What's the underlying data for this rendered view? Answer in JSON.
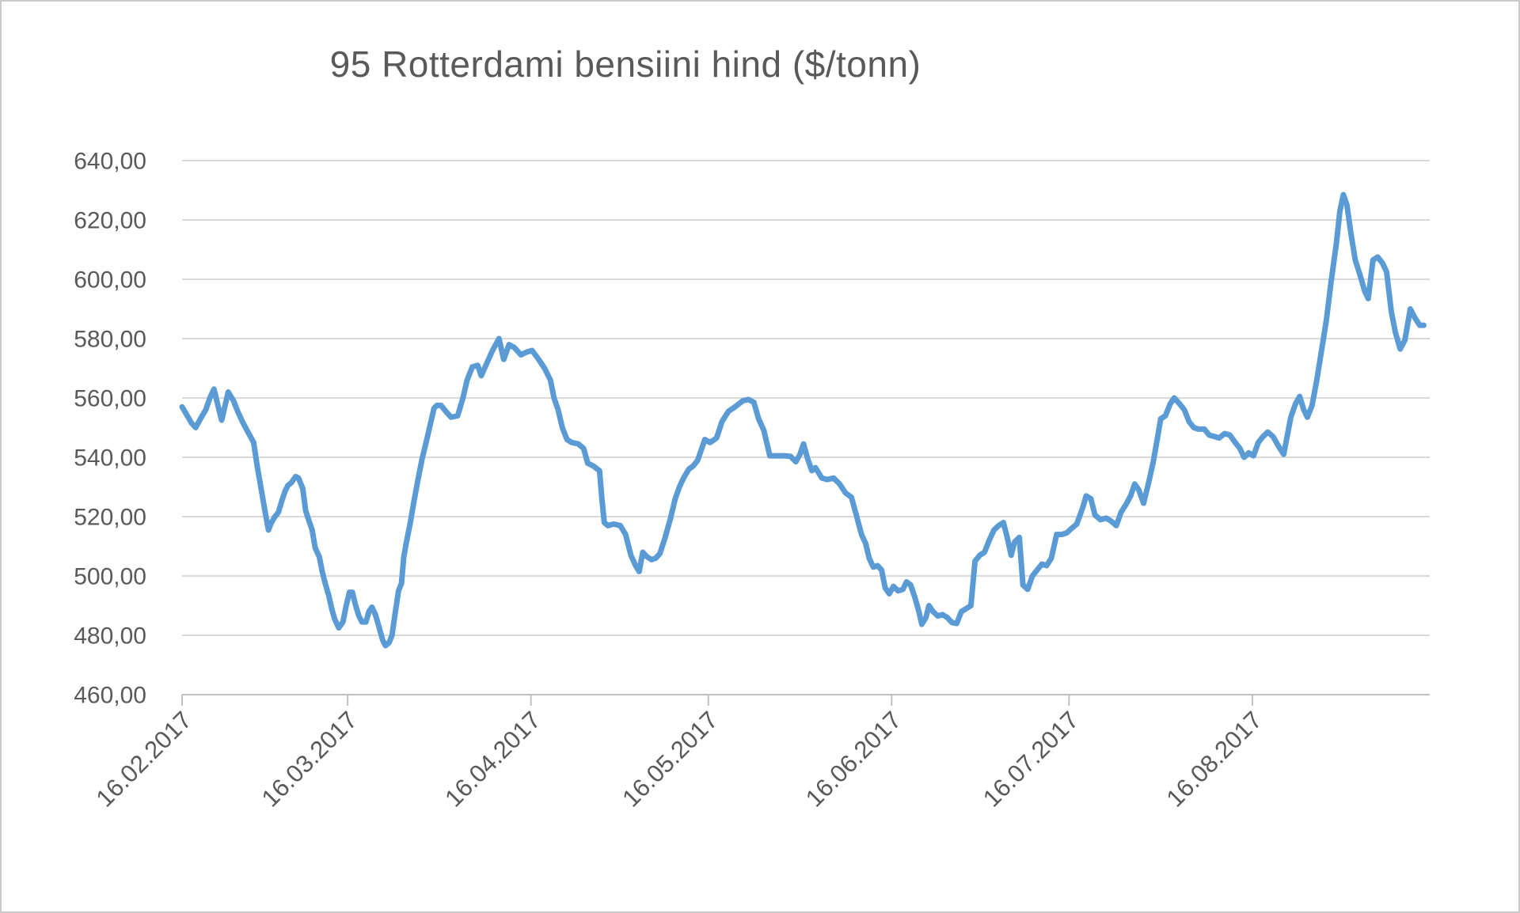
{
  "window": {
    "border_color": "#c9c9c9",
    "background": "#ffffff"
  },
  "chart": {
    "title": "95 Rotterdami bensiini hind ($/tonn)",
    "title_color": "#595959",
    "label_color": "#595959",
    "line_color": "#5B9BD5",
    "gridline_color": "#d9d9d9",
    "axis_line_color": "#bfbfbf"
  },
  "chart_data": {
    "type": "line",
    "title": "95 Rotterdami bensiini hind ($/tonn)",
    "xlabel": "",
    "ylabel": "",
    "x_unit": "days since 16.02.2017",
    "x_range_days": [
      0,
      211
    ],
    "x_tick_days": [
      0,
      28,
      59,
      89,
      120,
      150,
      181
    ],
    "x_tick_labels": [
      "16.02.2017",
      "16.03.2017",
      "16.04.2017",
      "16.05.2017",
      "16.06.2017",
      "16.07.2017",
      "16.08.2017"
    ],
    "ylim": [
      460,
      640
    ],
    "y_tick_step": 20,
    "y_tick_labels": [
      "640,00",
      "620,00",
      "600,00",
      "580,00",
      "560,00",
      "540,00",
      "520,00",
      "500,00",
      "480,00",
      "460,00"
    ],
    "grid": "horizontal",
    "legend": "none",
    "series": [
      {
        "name": "95 Rotterdami bensiini hind ($/tonn)",
        "color": "#5B9BD5",
        "points": [
          [
            0,
            557
          ],
          [
            1.6,
            551.5
          ],
          [
            2.3,
            550
          ],
          [
            3.1,
            553
          ],
          [
            4,
            556
          ],
          [
            4.7,
            560
          ],
          [
            5.4,
            563
          ],
          [
            6,
            558
          ],
          [
            6.7,
            552.5
          ],
          [
            7.8,
            562
          ],
          [
            8.7,
            559
          ],
          [
            9.4,
            555.5
          ],
          [
            10.2,
            552
          ],
          [
            11,
            549
          ],
          [
            12.1,
            545
          ],
          [
            12.7,
            537
          ],
          [
            13.4,
            529
          ],
          [
            14.1,
            521
          ],
          [
            14.6,
            515.5
          ],
          [
            15.1,
            518
          ],
          [
            15.7,
            520
          ],
          [
            16.3,
            521.5
          ],
          [
            16.9,
            525.5
          ],
          [
            17.4,
            528.5
          ],
          [
            17.9,
            530.5
          ],
          [
            18.5,
            531.5
          ],
          [
            19.2,
            533.5
          ],
          [
            19.7,
            533
          ],
          [
            20.4,
            529.5
          ],
          [
            20.9,
            522
          ],
          [
            21.4,
            519
          ],
          [
            22,
            515.5
          ],
          [
            22.5,
            509.5
          ],
          [
            23.2,
            506.5
          ],
          [
            23.7,
            501.5
          ],
          [
            24.2,
            497.5
          ],
          [
            24.8,
            493.5
          ],
          [
            25.3,
            489
          ],
          [
            25.8,
            485.5
          ],
          [
            26.5,
            482.5
          ],
          [
            27.2,
            484.5
          ],
          [
            27.7,
            489.5
          ],
          [
            28.3,
            494.5
          ],
          [
            28.8,
            494.5
          ],
          [
            29.3,
            490.5
          ],
          [
            29.9,
            486.5
          ],
          [
            30.4,
            484.5
          ],
          [
            31.1,
            484.5
          ],
          [
            31.6,
            488
          ],
          [
            32.1,
            489.5
          ],
          [
            32.7,
            487
          ],
          [
            33.2,
            483.5
          ],
          [
            33.9,
            478.5
          ],
          [
            34.4,
            476.5
          ],
          [
            35,
            477.5
          ],
          [
            35.5,
            480
          ],
          [
            36,
            487
          ],
          [
            36.6,
            495
          ],
          [
            37.1,
            497.5
          ],
          [
            37.5,
            506.5
          ],
          [
            37.9,
            511
          ],
          [
            38.6,
            518
          ],
          [
            39.2,
            525
          ],
          [
            39.9,
            532.5
          ],
          [
            40.6,
            539.5
          ],
          [
            41.5,
            547
          ],
          [
            42.6,
            556.5
          ],
          [
            43.1,
            557.5
          ],
          [
            43.8,
            557.5
          ],
          [
            44.6,
            555.5
          ],
          [
            45.5,
            553.5
          ],
          [
            46.6,
            554
          ],
          [
            47.5,
            560
          ],
          [
            48.2,
            566
          ],
          [
            49.1,
            570.5
          ],
          [
            50,
            571
          ],
          [
            50.6,
            567.5
          ],
          [
            51.6,
            572
          ],
          [
            52.5,
            576
          ],
          [
            53.6,
            580
          ],
          [
            54.4,
            573
          ],
          [
            55.3,
            578
          ],
          [
            56.2,
            577
          ],
          [
            57.3,
            574.5
          ],
          [
            58.3,
            575.5
          ],
          [
            59.2,
            576
          ],
          [
            60.3,
            573
          ],
          [
            61.3,
            570
          ],
          [
            62.3,
            566
          ],
          [
            62.9,
            560
          ],
          [
            63.6,
            556
          ],
          [
            64.3,
            550
          ],
          [
            65.1,
            546
          ],
          [
            65.9,
            545
          ],
          [
            67,
            544.5
          ],
          [
            67.9,
            543
          ],
          [
            68.6,
            538
          ],
          [
            69.6,
            537
          ],
          [
            70.6,
            535.5
          ],
          [
            71,
            526
          ],
          [
            71.4,
            518
          ],
          [
            72,
            517
          ],
          [
            73,
            517.5
          ],
          [
            74.1,
            517
          ],
          [
            75,
            514
          ],
          [
            75.9,
            507
          ],
          [
            76.7,
            503.5
          ],
          [
            77.3,
            501.5
          ],
          [
            77.9,
            508
          ],
          [
            78.6,
            506.5
          ],
          [
            79.4,
            505.5
          ],
          [
            80.1,
            506
          ],
          [
            80.8,
            507.5
          ],
          [
            81.7,
            513
          ],
          [
            82.6,
            519.5
          ],
          [
            83.4,
            526
          ],
          [
            84.1,
            530
          ],
          [
            84.8,
            533
          ],
          [
            85.7,
            536
          ],
          [
            86.4,
            537
          ],
          [
            87.2,
            539
          ],
          [
            88.4,
            546
          ],
          [
            89.3,
            545
          ],
          [
            90.4,
            546.5
          ],
          [
            91.3,
            552
          ],
          [
            92.4,
            555.5
          ],
          [
            93.5,
            557
          ],
          [
            94.8,
            559
          ],
          [
            95.8,
            559.5
          ],
          [
            96.7,
            558.5
          ],
          [
            97.5,
            553
          ],
          [
            98.4,
            549
          ],
          [
            99.4,
            540.5
          ],
          [
            100.4,
            540.5
          ],
          [
            101.8,
            540.5
          ],
          [
            102.9,
            540.3
          ],
          [
            103.8,
            538.5
          ],
          [
            104.5,
            541
          ],
          [
            105.1,
            544.5
          ],
          [
            105.8,
            539.5
          ],
          [
            106.5,
            535.5
          ],
          [
            107.1,
            536.5
          ],
          [
            108.2,
            533
          ],
          [
            109.1,
            532.5
          ],
          [
            110.2,
            533
          ],
          [
            111.2,
            531
          ],
          [
            112.2,
            528
          ],
          [
            113.2,
            526.5
          ],
          [
            114.1,
            520
          ],
          [
            114.9,
            514
          ],
          [
            115.6,
            511
          ],
          [
            116.2,
            506
          ],
          [
            116.9,
            503
          ],
          [
            117.6,
            503.5
          ],
          [
            118.3,
            502
          ],
          [
            118.9,
            496
          ],
          [
            119.6,
            494
          ],
          [
            120.3,
            496.5
          ],
          [
            121.1,
            495
          ],
          [
            121.9,
            495.5
          ],
          [
            122.5,
            498
          ],
          [
            123.2,
            497
          ],
          [
            123.9,
            493
          ],
          [
            124.6,
            488
          ],
          [
            125.1,
            483.7
          ],
          [
            125.8,
            486
          ],
          [
            126.3,
            490
          ],
          [
            127,
            488
          ],
          [
            127.8,
            486.5
          ],
          [
            128.6,
            487
          ],
          [
            129.4,
            486
          ],
          [
            130.2,
            484.3
          ],
          [
            131,
            484
          ],
          [
            131.8,
            488
          ],
          [
            132.6,
            489
          ],
          [
            133.4,
            490
          ],
          [
            134.1,
            505
          ],
          [
            134.9,
            507
          ],
          [
            135.7,
            508
          ],
          [
            136.5,
            512
          ],
          [
            137.3,
            515.5
          ],
          [
            138.1,
            517
          ],
          [
            138.9,
            518
          ],
          [
            139.6,
            512.5
          ],
          [
            140.2,
            507
          ],
          [
            140.8,
            511.5
          ],
          [
            141.6,
            513
          ],
          [
            142.2,
            497
          ],
          [
            143,
            495.5
          ],
          [
            143.8,
            500
          ],
          [
            144.6,
            502
          ],
          [
            145.4,
            504
          ],
          [
            146.2,
            503.5
          ],
          [
            147,
            506
          ],
          [
            147.9,
            514
          ],
          [
            148.8,
            514
          ],
          [
            149.6,
            514.5
          ],
          [
            150.4,
            516
          ],
          [
            151.3,
            517.5
          ],
          [
            152.3,
            523
          ],
          [
            152.9,
            527
          ],
          [
            153.7,
            526
          ],
          [
            154.4,
            520.5
          ],
          [
            155.3,
            519
          ],
          [
            156.3,
            519.5
          ],
          [
            157.1,
            518.5
          ],
          [
            158,
            517
          ],
          [
            158.8,
            521.5
          ],
          [
            159.6,
            524
          ],
          [
            160.4,
            527
          ],
          [
            161.1,
            531
          ],
          [
            161.8,
            529
          ],
          [
            162.6,
            524.5
          ],
          [
            163.4,
            531
          ],
          [
            164.2,
            538
          ],
          [
            164.9,
            546
          ],
          [
            165.5,
            553
          ],
          [
            166.3,
            554
          ],
          [
            167.1,
            558
          ],
          [
            167.8,
            560
          ],
          [
            168.7,
            558
          ],
          [
            169.5,
            556
          ],
          [
            170.3,
            552
          ],
          [
            171.1,
            550
          ],
          [
            171.9,
            549.5
          ],
          [
            172.9,
            549.5
          ],
          [
            173.7,
            547.5
          ],
          [
            174.6,
            547
          ],
          [
            175.4,
            546.5
          ],
          [
            176.3,
            548
          ],
          [
            177.2,
            547.5
          ],
          [
            178.1,
            545
          ],
          [
            178.9,
            543
          ],
          [
            179.6,
            540
          ],
          [
            180.4,
            541.5
          ],
          [
            181.2,
            540.5
          ],
          [
            182,
            545
          ],
          [
            182.8,
            547
          ],
          [
            183.6,
            548.5
          ],
          [
            184.5,
            547
          ],
          [
            185.5,
            543.5
          ],
          [
            186.3,
            541
          ],
          [
            187.5,
            553.5
          ],
          [
            188.3,
            558
          ],
          [
            189,
            560.5
          ],
          [
            189.7,
            556
          ],
          [
            190.3,
            553.5
          ],
          [
            191.1,
            557.5
          ],
          [
            191.9,
            566
          ],
          [
            192.7,
            576
          ],
          [
            193.5,
            586
          ],
          [
            194.3,
            599
          ],
          [
            195.2,
            612
          ],
          [
            195.8,
            623
          ],
          [
            196.4,
            628.5
          ],
          [
            197,
            625
          ],
          [
            197.7,
            615
          ],
          [
            198.4,
            606.5
          ],
          [
            199.2,
            601.5
          ],
          [
            200,
            596
          ],
          [
            200.6,
            593.5
          ],
          [
            201.4,
            606.5
          ],
          [
            202.2,
            607.5
          ],
          [
            203,
            605.5
          ],
          [
            203.7,
            602.5
          ],
          [
            204.5,
            589
          ],
          [
            205.2,
            582
          ],
          [
            206,
            576.5
          ],
          [
            206.8,
            579.5
          ],
          [
            207.7,
            590
          ],
          [
            208.5,
            587
          ],
          [
            209.3,
            584.5
          ],
          [
            210,
            584.5
          ]
        ]
      }
    ]
  }
}
